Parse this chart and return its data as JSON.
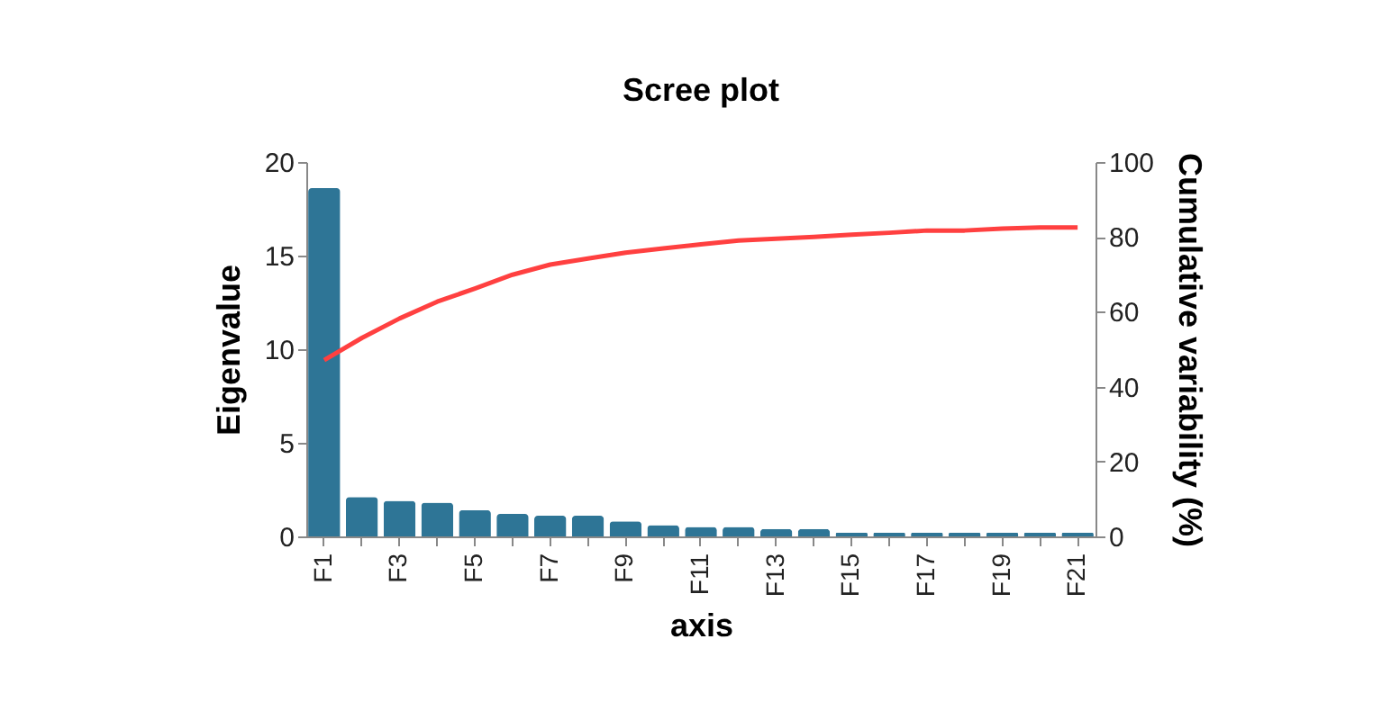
{
  "chart_data": {
    "type": "bar",
    "title": "Scree plot",
    "xlabel": "axis",
    "ylabel": "Eigenvalue",
    "y2label": "Cumulative variability  (%)",
    "categories": [
      "F1",
      null,
      "F3",
      null,
      "F5",
      null,
      "F7",
      null,
      "F9",
      null,
      "F11",
      null,
      "F13",
      null,
      "F15",
      null,
      "F17",
      null,
      "F19",
      null,
      "F21"
    ],
    "series": [
      {
        "color": "#2e7596",
        "values": [
          18.6,
          2.1,
          1.9,
          1.8,
          1.4,
          1.2,
          1.1,
          1.1,
          0.8,
          0.6,
          0.5,
          0.5,
          0.4,
          0.4,
          0.2,
          0.2,
          0.2,
          0.2,
          0.2,
          0.2,
          0.2
        ]
      },
      {
        "type": "line",
        "axis": "y2",
        "color": "#ff4040",
        "values": [
          47.1,
          53,
          58.2,
          62.7,
          66.2,
          69.9,
          72.6,
          74.2,
          75.8,
          76.9,
          78,
          79,
          79.5,
          80,
          80.6,
          81.1,
          81.7,
          81.7,
          82.2,
          82.5,
          82.5
        ]
      }
    ],
    "ylim": [
      0,
      20
    ],
    "yticks": [
      0,
      5,
      10,
      15,
      20
    ],
    "y2lim": [
      0,
      100
    ],
    "y2ticks": [
      0,
      20,
      40,
      60,
      80,
      100
    ]
  }
}
